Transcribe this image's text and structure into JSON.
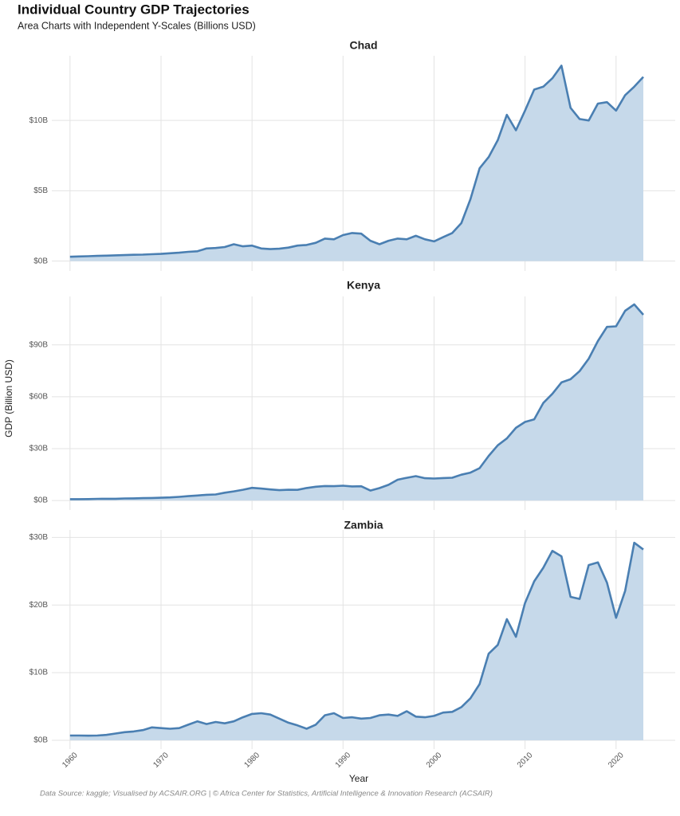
{
  "header": {
    "title": "Individual Country GDP Trajectories",
    "subtitle": "Area Charts with Independent Y-Scales (Billions USD)"
  },
  "axes": {
    "ylabel": "GDP (Billion USD)",
    "xlabel": "Year"
  },
  "footer": {
    "caption": "Data Source: kaggle; Visualised by ACSAIR.ORG | © Africa Center for Statistics, Artificial Intelligence & Innovation Research (ACSAIR)"
  },
  "chart_data": [
    {
      "type": "area",
      "title": "Chad",
      "color": "#4a7fb2",
      "fill": "#c6d9ea",
      "grid": true,
      "x": [
        1960,
        1961,
        1962,
        1963,
        1964,
        1965,
        1966,
        1967,
        1968,
        1969,
        1970,
        1971,
        1972,
        1973,
        1974,
        1975,
        1976,
        1977,
        1978,
        1979,
        1980,
        1981,
        1982,
        1983,
        1984,
        1985,
        1986,
        1987,
        1988,
        1989,
        1990,
        1991,
        1992,
        1993,
        1994,
        1995,
        1996,
        1997,
        1998,
        1999,
        2000,
        2001,
        2002,
        2003,
        2004,
        2005,
        2006,
        2007,
        2008,
        2009,
        2010,
        2011,
        2012,
        2013,
        2014,
        2015,
        2016,
        2017,
        2018,
        2019,
        2020,
        2021,
        2022,
        2023
      ],
      "values": [
        0.31,
        0.33,
        0.35,
        0.37,
        0.39,
        0.41,
        0.43,
        0.45,
        0.46,
        0.49,
        0.51,
        0.56,
        0.6,
        0.66,
        0.7,
        0.9,
        0.93,
        1.0,
        1.2,
        1.05,
        1.1,
        0.9,
        0.85,
        0.88,
        0.96,
        1.1,
        1.15,
        1.3,
        1.6,
        1.55,
        1.85,
        2.0,
        1.95,
        1.45,
        1.2,
        1.45,
        1.6,
        1.55,
        1.8,
        1.55,
        1.4,
        1.7,
        2.0,
        2.7,
        4.4,
        6.6,
        7.4,
        8.6,
        10.4,
        9.3,
        10.7,
        12.2,
        12.4,
        13.0,
        13.9,
        10.9,
        10.1,
        10.0,
        11.2,
        11.3,
        10.7,
        11.8,
        12.4,
        13.1
      ],
      "xlim": [
        1958,
        2026.5
      ],
      "xticks": [
        1960,
        1970,
        1980,
        1990,
        2000,
        2010,
        2020
      ],
      "ylim": [
        -0.7,
        14.6
      ],
      "yticks": [
        {
          "value": 0,
          "label": "$0B"
        },
        {
          "value": 5,
          "label": "$5B"
        },
        {
          "value": 10,
          "label": "$10B"
        }
      ]
    },
    {
      "type": "area",
      "title": "Kenya",
      "color": "#4a7fb2",
      "fill": "#c6d9ea",
      "grid": true,
      "x": [
        1960,
        1961,
        1962,
        1963,
        1964,
        1965,
        1966,
        1967,
        1968,
        1969,
        1970,
        1971,
        1972,
        1973,
        1974,
        1975,
        1976,
        1977,
        1978,
        1979,
        1980,
        1981,
        1982,
        1983,
        1984,
        1985,
        1986,
        1987,
        1988,
        1989,
        1990,
        1991,
        1992,
        1993,
        1994,
        1995,
        1996,
        1997,
        1998,
        1999,
        2000,
        2001,
        2002,
        2003,
        2004,
        2005,
        2006,
        2007,
        2008,
        2009,
        2010,
        2011,
        2012,
        2013,
        2014,
        2015,
        2016,
        2017,
        2018,
        2019,
        2020,
        2021,
        2022,
        2023
      ],
      "values": [
        0.79,
        0.79,
        0.83,
        0.93,
        0.99,
        1.02,
        1.18,
        1.23,
        1.35,
        1.46,
        1.6,
        1.77,
        2.1,
        2.5,
        2.9,
        3.3,
        3.5,
        4.5,
        5.3,
        6.2,
        7.3,
        6.9,
        6.4,
        5.98,
        6.19,
        6.14,
        7.24,
        7.97,
        8.36,
        8.28,
        8.57,
        8.15,
        8.21,
        5.75,
        7.15,
        9.05,
        12.0,
        13.1,
        14.1,
        12.9,
        12.7,
        12.99,
        13.15,
        14.9,
        16.1,
        18.7,
        25.8,
        31.9,
        35.9,
        42.0,
        45.4,
        46.9,
        56.4,
        61.7,
        68.3,
        70.1,
        74.8,
        82.0,
        92.2,
        100.4,
        100.7,
        109.7,
        113.4,
        107.4
      ],
      "xlim": [
        1958,
        2026.5
      ],
      "xticks": [
        1960,
        1970,
        1980,
        1990,
        2000,
        2010,
        2020
      ],
      "ylim": [
        -5.5,
        118
      ],
      "yticks": [
        {
          "value": 0,
          "label": "$0B"
        },
        {
          "value": 30,
          "label": "$30B"
        },
        {
          "value": 60,
          "label": "$60B"
        },
        {
          "value": 90,
          "label": "$90B"
        }
      ]
    },
    {
      "type": "area",
      "title": "Zambia",
      "color": "#4a7fb2",
      "fill": "#c6d9ea",
      "grid": true,
      "x": [
        1960,
        1961,
        1962,
        1963,
        1964,
        1965,
        1966,
        1967,
        1968,
        1969,
        1970,
        1971,
        1972,
        1973,
        1974,
        1975,
        1976,
        1977,
        1978,
        1979,
        1980,
        1981,
        1982,
        1983,
        1984,
        1985,
        1986,
        1987,
        1988,
        1989,
        1990,
        1991,
        1992,
        1993,
        1994,
        1995,
        1996,
        1997,
        1998,
        1999,
        2000,
        2001,
        2002,
        2003,
        2004,
        2005,
        2006,
        2007,
        2008,
        2009,
        2010,
        2011,
        2012,
        2013,
        2014,
        2015,
        2016,
        2017,
        2018,
        2019,
        2020,
        2021,
        2022,
        2023
      ],
      "values": [
        0.7,
        0.7,
        0.68,
        0.7,
        0.8,
        1.0,
        1.2,
        1.3,
        1.5,
        1.9,
        1.8,
        1.7,
        1.8,
        2.3,
        2.8,
        2.4,
        2.7,
        2.5,
        2.8,
        3.4,
        3.9,
        4.0,
        3.8,
        3.2,
        2.6,
        2.2,
        1.7,
        2.3,
        3.7,
        4.0,
        3.3,
        3.4,
        3.2,
        3.3,
        3.7,
        3.8,
        3.6,
        4.3,
        3.5,
        3.4,
        3.6,
        4.1,
        4.2,
        4.9,
        6.2,
        8.3,
        12.8,
        14.1,
        17.9,
        15.3,
        20.3,
        23.5,
        25.5,
        28.0,
        27.2,
        21.2,
        20.9,
        25.9,
        26.3,
        23.3,
        18.1,
        22.1,
        29.2,
        28.2
      ],
      "xlim": [
        1958,
        2026.5
      ],
      "xticks": [
        1960,
        1970,
        1980,
        1990,
        2000,
        2010,
        2020
      ],
      "ylim": [
        -1.3,
        31.1
      ],
      "yticks": [
        {
          "value": 0,
          "label": "$0B"
        },
        {
          "value": 10,
          "label": "$10B"
        },
        {
          "value": 20,
          "label": "$20B"
        },
        {
          "value": 30,
          "label": "$30B"
        }
      ]
    }
  ]
}
